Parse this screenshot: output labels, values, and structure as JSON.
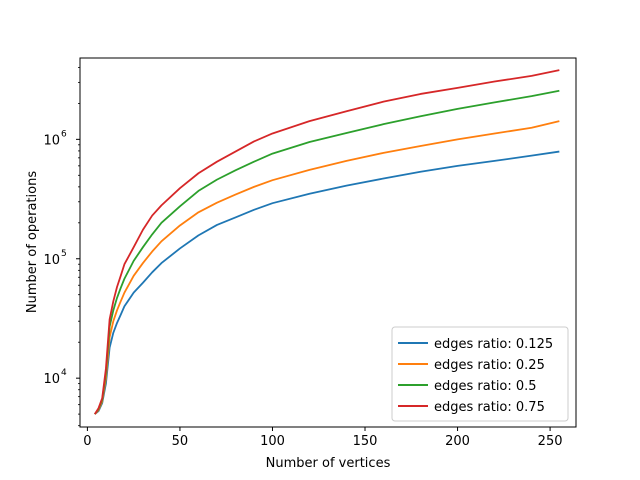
{
  "chart_data": {
    "type": "line",
    "xlabel": "Number of vertices",
    "ylabel": "Number of operations",
    "xlim": [
      -4.0,
      264.0
    ],
    "ylim": [
      3900,
      4800000
    ],
    "yscale": "log",
    "grid": false,
    "legend_position": "bottom-right",
    "x_ticks": [
      0,
      50,
      100,
      150,
      200,
      250
    ],
    "x_tick_labels": [
      "0",
      "50",
      "100",
      "150",
      "200",
      "250"
    ],
    "y_ticks": [
      10000,
      100000,
      1000000
    ],
    "y_tick_labels": [
      "10",
      "10",
      "10"
    ],
    "y_tick_exponents": [
      "4",
      "5",
      "6"
    ],
    "x": [
      4,
      6,
      8,
      10,
      12,
      14,
      16,
      18,
      20,
      25,
      30,
      35,
      40,
      50,
      60,
      70,
      80,
      90,
      100,
      120,
      140,
      160,
      180,
      200,
      220,
      240,
      255
    ],
    "series": [
      {
        "name": "edges ratio: 0.125",
        "color": "#1f77b4",
        "values": [
          5000,
          5300,
          6200,
          9000,
          18000,
          24000,
          29000,
          34000,
          40000,
          52000,
          63000,
          77000,
          92000,
          122000,
          157000,
          192000,
          222000,
          257000,
          292000,
          350000,
          410000,
          470000,
          535000,
          600000,
          660000,
          730000,
          790000
        ]
      },
      {
        "name": "edges ratio: 0.25",
        "color": "#ff7f0e",
        "values": [
          5000,
          5400,
          6400,
          10000,
          22000,
          30000,
          37000,
          44000,
          52000,
          72000,
          92000,
          115000,
          140000,
          190000,
          245000,
          295000,
          345000,
          400000,
          455000,
          555000,
          660000,
          770000,
          880000,
          1000000,
          1120000,
          1250000,
          1420000
        ]
      },
      {
        "name": "edges ratio: 0.5",
        "color": "#2ca02c",
        "values": [
          5000,
          5500,
          6600,
          11000,
          27000,
          37000,
          47000,
          57000,
          68000,
          96000,
          125000,
          160000,
          200000,
          275000,
          370000,
          460000,
          550000,
          650000,
          760000,
          950000,
          1130000,
          1340000,
          1560000,
          1800000,
          2040000,
          2300000,
          2550000
        ]
      },
      {
        "name": "edges ratio: 0.75",
        "color": "#d62728",
        "values": [
          5000,
          5600,
          6800,
          12000,
          31000,
          44000,
          58000,
          72000,
          90000,
          125000,
          175000,
          230000,
          280000,
          390000,
          520000,
          650000,
          790000,
          960000,
          1120000,
          1420000,
          1720000,
          2070000,
          2400000,
          2700000,
          3050000,
          3400000,
          3800000
        ]
      }
    ]
  }
}
